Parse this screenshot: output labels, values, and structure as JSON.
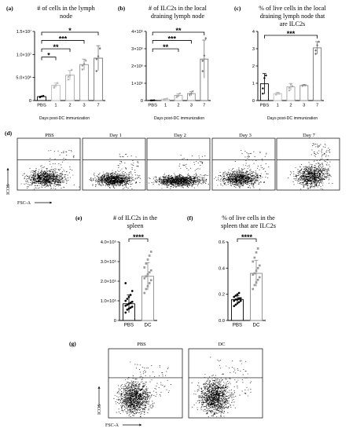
{
  "chart_data": [
    {
      "id": "a",
      "type": "bar",
      "panel_label": "(a)",
      "title_lines": [
        "# of cells in the lymph",
        "node"
      ],
      "xlabel": "Days post-DC immunization",
      "ylabel": "",
      "categories": [
        "PBS",
        "1",
        "2",
        "3",
        "7"
      ],
      "values": [
        850000,
        3300000,
        5500000,
        7800000,
        9200000
      ],
      "errors": [
        100000,
        500000,
        1000000,
        1200000,
        2700000
      ],
      "points": [
        [
          800000,
          900000,
          1000000,
          700000
        ],
        [
          2800000,
          3300000,
          3800000,
          3000000
        ],
        [
          4600000,
          5500000,
          6700000,
          5200000
        ],
        [
          6700000,
          7900000,
          8600000,
          7500000
        ],
        [
          6400000,
          9600000,
          11300000,
          9000000
        ]
      ],
      "ylim": [
        0,
        15000000
      ],
      "yticks": [
        "0",
        "5.0×10⁶",
        "1.0×10⁷",
        "1.5×10⁷"
      ],
      "bar_colors": [
        "#000000",
        "#bdbdbd",
        "#a6a6a6",
        "#8e8e8e",
        "#737373"
      ],
      "significance": [
        {
          "from": 0,
          "to": 1,
          "label": "*"
        },
        {
          "from": 0,
          "to": 2,
          "label": "**"
        },
        {
          "from": 0,
          "to": 3,
          "label": "***"
        },
        {
          "from": 0,
          "to": 4,
          "label": "*"
        }
      ]
    },
    {
      "id": "b",
      "type": "bar",
      "panel_label": "(b)",
      "title_lines": [
        "# of ILC2s in the local",
        "draining lymph node"
      ],
      "xlabel": "Days post-DC immunization",
      "ylabel": "",
      "categories": [
        "PBS",
        "1",
        "2",
        "3",
        "7"
      ],
      "values": [
        1000,
        8000,
        30000,
        40000,
        240000
      ],
      "errors": [
        1000,
        3000,
        10000,
        12000,
        110000
      ],
      "points": [
        [
          500,
          1000,
          1500,
          800
        ],
        [
          5000,
          8000,
          11000,
          7000
        ],
        [
          20000,
          30000,
          42000,
          28000
        ],
        [
          30000,
          40000,
          52000,
          38000
        ],
        [
          170000,
          260000,
          360000,
          230000
        ]
      ],
      "ylim": [
        0,
        400000
      ],
      "yticks": [
        "0",
        "1×10⁵",
        "2×10⁵",
        "3×10⁵",
        "4×10⁵"
      ],
      "bar_colors": [
        "#000000",
        "#bdbdbd",
        "#a6a6a6",
        "#8e8e8e",
        "#737373"
      ],
      "significance": [
        {
          "from": 0,
          "to": 2,
          "label": "**"
        },
        {
          "from": 0,
          "to": 3,
          "label": "***"
        },
        {
          "from": 0,
          "to": 4,
          "label": "**"
        }
      ]
    },
    {
      "id": "c",
      "type": "bar",
      "panel_label": "(c)",
      "title_lines": [
        "% of live cells in the local",
        "draining lymph node that",
        "are ILC2s"
      ],
      "xlabel": "Days post-DC immunization",
      "ylabel": "",
      "categories": [
        "PBS",
        "1",
        "2",
        "3",
        "7"
      ],
      "values": [
        0.97,
        0.4,
        0.79,
        0.87,
        3.05
      ],
      "errors": [
        0.59,
        0.07,
        0.2,
        0.04,
        0.36
      ],
      "points": [
        [
          0.4,
          1.3,
          1.45,
          0.7
        ],
        [
          0.35,
          0.45,
          0.4,
          0.38
        ],
        [
          0.6,
          0.95,
          0.85,
          0.75
        ],
        [
          0.83,
          0.9,
          0.88,
          0.86
        ],
        [
          2.7,
          3.2,
          3.4,
          2.9
        ]
      ],
      "ylim": [
        0,
        4
      ],
      "yticks": [
        "0",
        "1",
        "2",
        "3",
        "4"
      ],
      "bar_colors": [
        "#000000",
        "#bdbdbd",
        "#a6a6a6",
        "#8e8e8e",
        "#737373"
      ],
      "significance": [
        {
          "from": 0,
          "to": 4,
          "label": "***"
        }
      ]
    },
    {
      "id": "e",
      "type": "bar",
      "panel_label": "(e)",
      "title_lines": [
        "# of ILC2s in the",
        "spleen"
      ],
      "xlabel": "",
      "ylabel": "",
      "categories": [
        "PBS",
        "DC"
      ],
      "values": [
        85000,
        225000
      ],
      "errors": [
        45000,
        70000
      ],
      "points": [
        [
          40000,
          55000,
          60000,
          65000,
          70000,
          75000,
          80000,
          85000,
          90000,
          95000,
          100000,
          110000,
          120000,
          130000,
          150000,
          190000
        ],
        [
          140000,
          160000,
          175000,
          190000,
          205000,
          215000,
          225000,
          235000,
          245000,
          255000,
          270000,
          290000,
          310000,
          330000,
          350000
        ]
      ],
      "ylim": [
        0,
        400000
      ],
      "yticks": [
        "0",
        "1.0×10⁵",
        "2.0×10⁵",
        "3.0×10⁵",
        "4.0×10⁵"
      ],
      "bar_colors": [
        "#000000",
        "#8a8a8a"
      ],
      "significance": [
        {
          "from": 0,
          "to": 1,
          "label": "****"
        }
      ]
    },
    {
      "id": "f",
      "type": "bar",
      "panel_label": "(f)",
      "title_lines": [
        "% of live cells in the",
        "spleen that are ILC2s"
      ],
      "xlabel": "",
      "ylabel": "",
      "categories": [
        "PBS",
        "DC"
      ],
      "values": [
        0.16,
        0.36
      ],
      "errors": [
        0.03,
        0.1
      ],
      "points": [
        [
          0.11,
          0.12,
          0.13,
          0.14,
          0.15,
          0.15,
          0.16,
          0.16,
          0.17,
          0.17,
          0.18,
          0.19,
          0.2,
          0.21
        ],
        [
          0.24,
          0.27,
          0.29,
          0.31,
          0.33,
          0.35,
          0.36,
          0.38,
          0.4,
          0.42,
          0.45,
          0.48,
          0.52,
          0.55
        ]
      ],
      "ylim": [
        0,
        0.6
      ],
      "yticks": [
        "0.0",
        "0.2",
        "0.4",
        "0.6"
      ],
      "bar_colors": [
        "#000000",
        "#8a8a8a"
      ],
      "significance": [
        {
          "from": 0,
          "to": 1,
          "label": "****"
        }
      ]
    }
  ],
  "flow_d": {
    "panel_label": "(d)",
    "ylabel": "ICOS",
    "xlabel": "FSC-A",
    "plots": [
      {
        "title": "PBS",
        "annotation": "0.968±0.590%"
      },
      {
        "title": "Day 1",
        "annotation": "0.400±0.071%"
      },
      {
        "title": "Day 2",
        "annotation": "0.788±0.198%"
      },
      {
        "title": "Day 3",
        "annotation": "0.870±0.042%"
      },
      {
        "title": "Day 7",
        "annotation": "3.045±0.355%"
      }
    ]
  },
  "flow_g": {
    "panel_label": "(g)",
    "ylabel": "ICOS",
    "xlabel": "FSC-A",
    "plots": [
      {
        "title": "PBS",
        "annotation": "0.155±0.030%"
      },
      {
        "title": "DC",
        "annotation": "0.360±0.097%"
      }
    ]
  }
}
